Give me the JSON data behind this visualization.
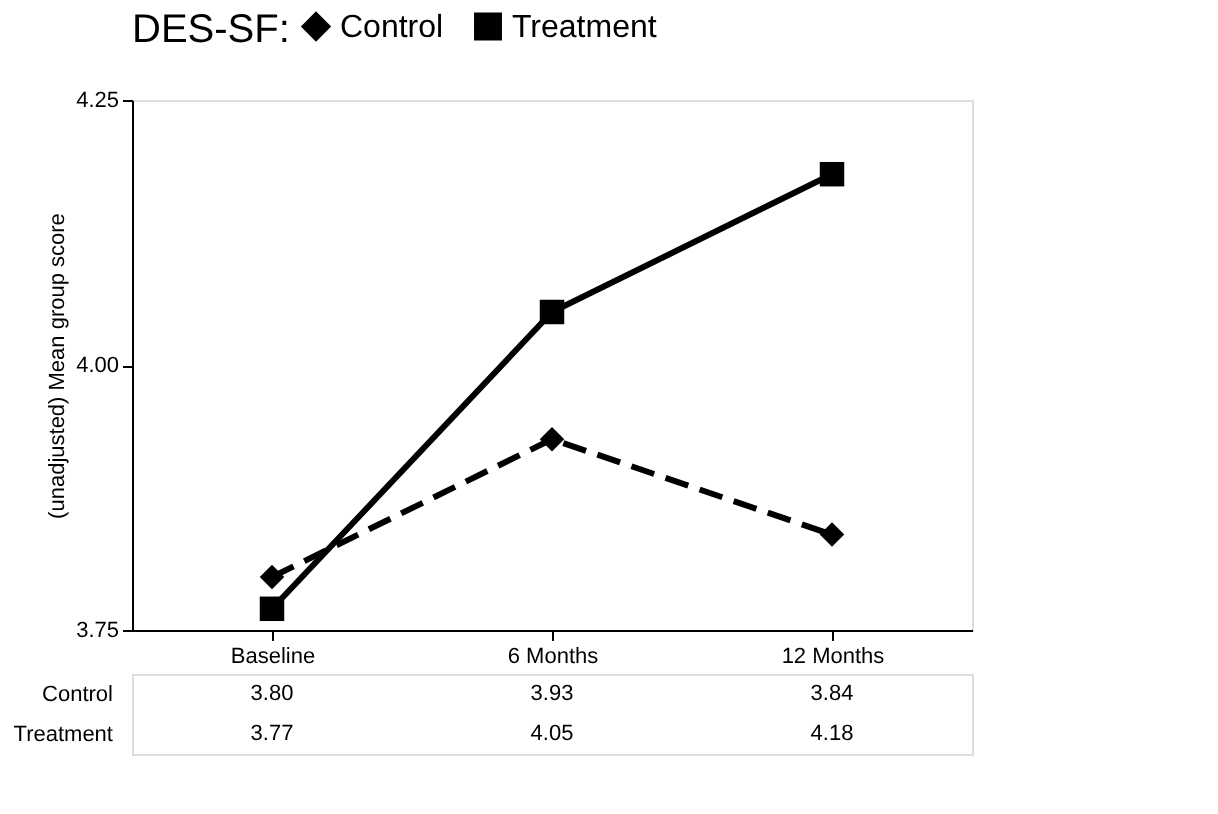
{
  "chart_data": {
    "type": "line",
    "legend_title": "DES-SF:",
    "ylabel": "(unadjusted) Mean group score",
    "categories": [
      "Baseline",
      "6 Months",
      "12 Months"
    ],
    "series": [
      {
        "name": "Control",
        "color": "#000000",
        "values": [
          3.8,
          3.93,
          3.84
        ],
        "value_labels": [
          "3.80",
          "3.93",
          "3.84"
        ],
        "line_style": "dashed",
        "marker": "diamond"
      },
      {
        "name": "Treatment",
        "color": "#000000",
        "values": [
          3.77,
          4.05,
          4.18
        ],
        "value_labels": [
          "3.77",
          "4.05",
          "4.18"
        ],
        "line_style": "solid",
        "marker": "square"
      }
    ],
    "ylim": [
      3.75,
      4.25
    ],
    "yticks": [
      {
        "value": 3.75,
        "label": "3.75"
      },
      {
        "value": 4.0,
        "label": "4.00"
      },
      {
        "value": 4.25,
        "label": "4.25"
      }
    ],
    "grid": false,
    "legend": "top"
  }
}
